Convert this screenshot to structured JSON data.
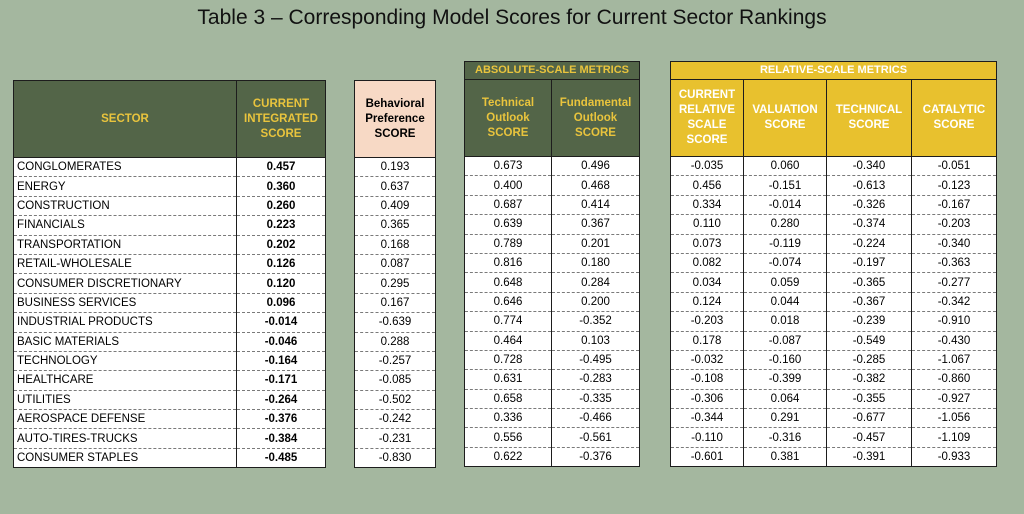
{
  "title": "Table 3 – Corresponding Model Scores for Current Sector Rankings",
  "headers": {
    "sector": "SECTOR",
    "integrated": [
      "CURRENT",
      "INTEGRATED",
      "SCORE"
    ],
    "behavioral": [
      "Behavioral",
      "Preference",
      "SCORE"
    ],
    "abs_group": "ABSOLUTE-SCALE METRICS",
    "abs_technical": [
      "Technical",
      "Outlook",
      "SCORE"
    ],
    "abs_fundamental": [
      "Fundamental",
      "Outlook",
      "SCORE"
    ],
    "rel_group": "RELATIVE-SCALE METRICS",
    "rel_current": [
      "CURRENT",
      "RELATIVE",
      "SCALE",
      "SCORE"
    ],
    "rel_valuation": [
      "VALUATION",
      "SCORE"
    ],
    "rel_technical": [
      "TECHNICAL",
      "SCORE"
    ],
    "rel_catalytic": [
      "CATALYTIC",
      "SCORE"
    ]
  },
  "rows": [
    [
      "CONGLOMERATES",
      "0.457",
      "0.193",
      "0.673",
      "0.496",
      "-0.035",
      "0.060",
      "-0.340",
      "-0.051"
    ],
    [
      "ENERGY",
      "0.360",
      "0.637",
      "0.400",
      "0.468",
      "0.456",
      "-0.151",
      "-0.613",
      "-0.123"
    ],
    [
      "CONSTRUCTION",
      "0.260",
      "0.409",
      "0.687",
      "0.414",
      "0.334",
      "-0.014",
      "-0.326",
      "-0.167"
    ],
    [
      "FINANCIALS",
      "0.223",
      "0.365",
      "0.639",
      "0.367",
      "0.110",
      "0.280",
      "-0.374",
      "-0.203"
    ],
    [
      "TRANSPORTATION",
      "0.202",
      "0.168",
      "0.789",
      "0.201",
      "0.073",
      "-0.119",
      "-0.224",
      "-0.340"
    ],
    [
      "RETAIL-WHOLESALE",
      "0.126",
      "0.087",
      "0.816",
      "0.180",
      "0.082",
      "-0.074",
      "-0.197",
      "-0.363"
    ],
    [
      "CONSUMER DISCRETIONARY",
      "0.120",
      "0.295",
      "0.648",
      "0.284",
      "0.034",
      "0.059",
      "-0.365",
      "-0.277"
    ],
    [
      "BUSINESS SERVICES",
      "0.096",
      "0.167",
      "0.646",
      "0.200",
      "0.124",
      "0.044",
      "-0.367",
      "-0.342"
    ],
    [
      "INDUSTRIAL PRODUCTS",
      "-0.014",
      "-0.639",
      "0.774",
      "-0.352",
      "-0.203",
      "0.018",
      "-0.239",
      "-0.910"
    ],
    [
      "BASIC MATERIALS",
      "-0.046",
      "0.288",
      "0.464",
      "0.103",
      "0.178",
      "-0.087",
      "-0.549",
      "-0.430"
    ],
    [
      "TECHNOLOGY",
      "-0.164",
      "-0.257",
      "0.728",
      "-0.495",
      "-0.032",
      "-0.160",
      "-0.285",
      "-1.067"
    ],
    [
      "HEALTHCARE",
      "-0.171",
      "-0.085",
      "0.631",
      "-0.283",
      "-0.108",
      "-0.399",
      "-0.382",
      "-0.860"
    ],
    [
      "UTILITIES",
      "-0.264",
      "-0.502",
      "0.658",
      "-0.335",
      "-0.306",
      "0.064",
      "-0.355",
      "-0.927"
    ],
    [
      "AEROSPACE DEFENSE",
      "-0.376",
      "-0.242",
      "0.336",
      "-0.466",
      "-0.344",
      "0.291",
      "-0.677",
      "-1.056"
    ],
    [
      "AUTO-TIRES-TRUCKS",
      "-0.384",
      "-0.231",
      "0.556",
      "-0.561",
      "-0.110",
      "-0.316",
      "-0.457",
      "-1.109"
    ],
    [
      "CONSUMER STAPLES",
      "-0.485",
      "-0.830",
      "0.622",
      "-0.376",
      "-0.601",
      "0.381",
      "-0.391",
      "-0.933"
    ]
  ],
  "colors": {
    "background": "#a4b79f",
    "dark_header": "#536548",
    "gold_text": "#e9c43d",
    "peach_header": "#f7d9c5",
    "gold_header": "#e8c12e"
  }
}
